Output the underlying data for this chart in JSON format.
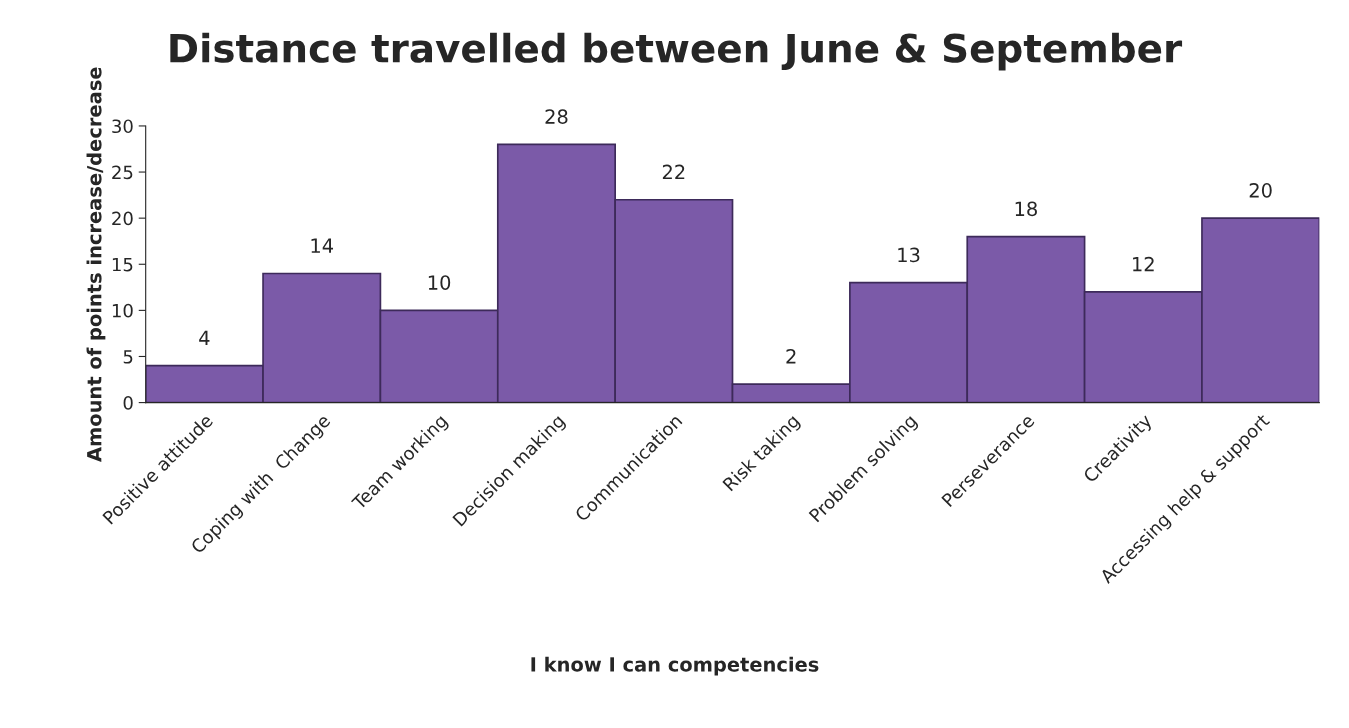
{
  "chart_data": {
    "type": "bar",
    "title": "Distance travelled between June & September",
    "xlabel": "I know I can competencies",
    "ylabel": "Amount of points increase/decrease",
    "categories": [
      "Positive attitude",
      "Coping with  Change",
      "Team working",
      "Decision making",
      "Communication",
      "Risk taking",
      "Problem solving",
      "Perseverance",
      "Creativity",
      "Accessing help & support"
    ],
    "values": [
      4,
      14,
      10,
      28,
      22,
      2,
      13,
      18,
      12,
      20
    ],
    "color": "#7b5aa8",
    "ylim": [
      0,
      30
    ],
    "yticks": [
      0,
      5,
      10,
      15,
      20,
      25,
      30
    ],
    "grid": false,
    "data_labels": true
  }
}
